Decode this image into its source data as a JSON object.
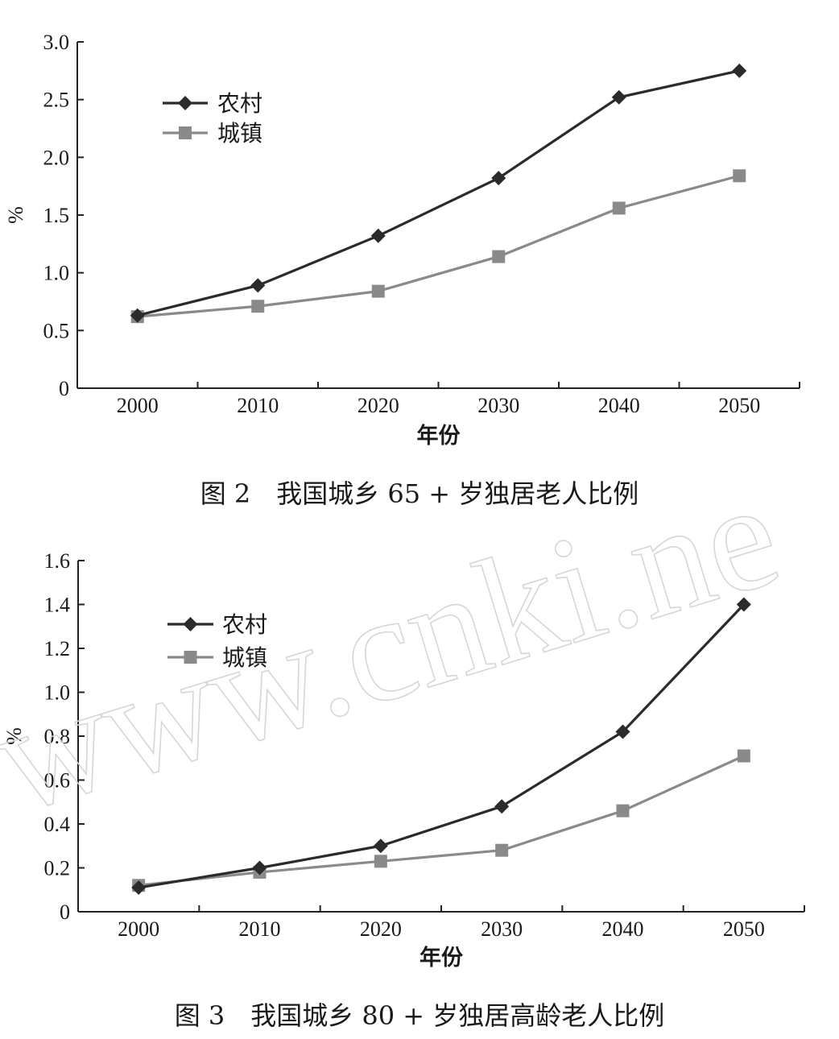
{
  "chart_data": [
    {
      "type": "line",
      "caption_number": "图 2",
      "caption_text": "我国城乡 65 + 岁独居老人比例",
      "xlabel": "年份",
      "ylabel": "%",
      "categories": [
        "2000",
        "2010",
        "2020",
        "2030",
        "2040",
        "2050"
      ],
      "yticks": [
        "0",
        "0.5",
        "1.0",
        "1.5",
        "2.0",
        "2.5",
        "3.0"
      ],
      "ylim": [
        0,
        3.0
      ],
      "legend_position": "top-left",
      "grid": false,
      "series": [
        {
          "name": "农村",
          "marker": "diamond",
          "color": "#2b2b2b",
          "values": [
            0.63,
            0.89,
            1.32,
            1.82,
            2.52,
            2.75
          ]
        },
        {
          "name": "城镇",
          "marker": "square",
          "color": "#8a8a8a",
          "values": [
            0.62,
            0.71,
            0.84,
            1.14,
            1.56,
            1.84
          ]
        }
      ]
    },
    {
      "type": "line",
      "caption_number": "图 3",
      "caption_text": "我国城乡 80 + 岁独居高龄老人比例",
      "xlabel": "年份",
      "ylabel": "%",
      "categories": [
        "2000",
        "2010",
        "2020",
        "2030",
        "2040",
        "2050"
      ],
      "yticks": [
        "0",
        "0.2",
        "0.4",
        "0.6",
        "0.8",
        "1.0",
        "1.2",
        "1.4",
        "1.6"
      ],
      "ylim": [
        0,
        1.6
      ],
      "legend_position": "top-left",
      "grid": false,
      "series": [
        {
          "name": "农村",
          "marker": "diamond",
          "color": "#2b2b2b",
          "values": [
            0.11,
            0.2,
            0.3,
            0.48,
            0.82,
            1.4
          ]
        },
        {
          "name": "城镇",
          "marker": "square",
          "color": "#8a8a8a",
          "values": [
            0.12,
            0.18,
            0.23,
            0.28,
            0.46,
            0.71
          ]
        }
      ]
    }
  ],
  "watermark": "www.cnki.ne"
}
